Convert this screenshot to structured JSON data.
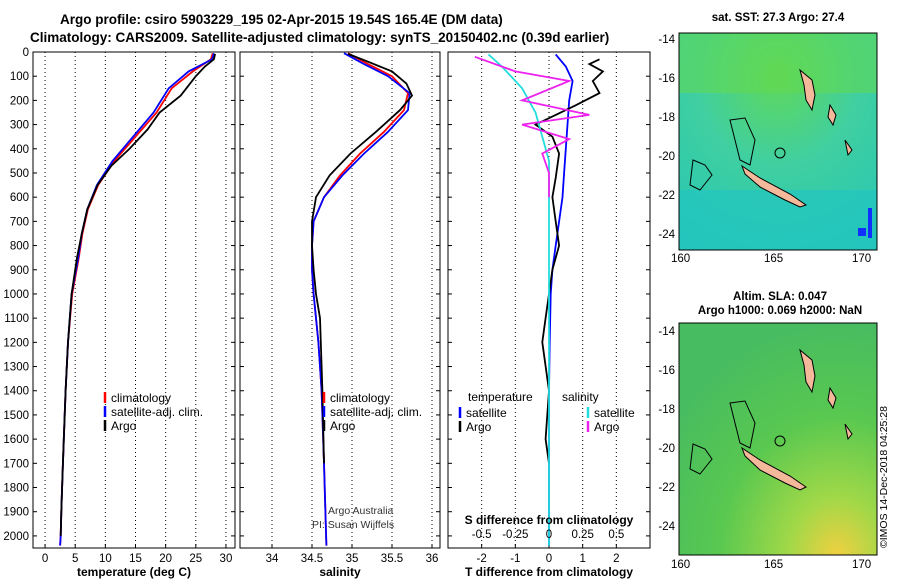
{
  "title": {
    "line1": "Argo profile: csiro 5903229_195 02-Apr-2015 19.54S 165.4E (DM data)",
    "line2": "Climatology: CARS2009. Satellite-adjusted climatology: synTS_20150402.nc (0.39d earlier)"
  },
  "colors": {
    "climatology": "#ff0000",
    "satellite": "#0000ff",
    "argo": "#000000",
    "sat_salinity": "#22dddd",
    "argo_salinity": "#ee22ee"
  },
  "depth_axis": {
    "min": 0,
    "max": 2050,
    "ticks": [
      0,
      100,
      200,
      300,
      400,
      500,
      600,
      700,
      800,
      900,
      1000,
      1100,
      1200,
      1300,
      1400,
      1500,
      1600,
      1700,
      1800,
      1900,
      2000
    ]
  },
  "chart_data": [
    {
      "type": "line",
      "id": "temperature",
      "xlabel": "temperature (deg C)",
      "ylabel": "depth",
      "xlim": [
        -2,
        31.5
      ],
      "xticks": [
        0,
        5,
        10,
        15,
        20,
        25,
        30
      ],
      "ylim": [
        2050,
        0
      ],
      "legend": [
        "climatology",
        "satellite-adj. clim.",
        "Argo"
      ],
      "series": [
        {
          "name": "climatology",
          "x": [
            27.8,
            27.5,
            24.5,
            21,
            18.5,
            15,
            11.5,
            8.8,
            7.1,
            6.2,
            5.6,
            4.5,
            3.8,
            3.4,
            3.1,
            2.9,
            2.7,
            2.6,
            2.5
          ],
          "y": [
            5,
            30,
            80,
            150,
            250,
            350,
            450,
            550,
            650,
            750,
            850,
            1000,
            1200,
            1400,
            1600,
            1750,
            1900,
            2000,
            2040
          ]
        },
        {
          "name": "satellite-adj. clim.",
          "x": [
            28.0,
            27.7,
            23.8,
            20.5,
            18,
            14.6,
            11.2,
            8.6,
            7.0,
            6.1,
            5.5,
            4.4,
            3.8,
            3.4,
            3.1,
            2.9,
            2.7,
            2.6,
            2.5
          ],
          "y": [
            5,
            30,
            80,
            150,
            250,
            350,
            450,
            550,
            650,
            750,
            850,
            1000,
            1200,
            1400,
            1600,
            1750,
            1900,
            2000,
            2040
          ]
        },
        {
          "name": "Argo",
          "x": [
            28.2,
            28.0,
            26.5,
            25,
            22.5,
            19,
            17,
            14,
            11,
            8.7,
            7.0,
            6.1,
            5.3,
            4.4,
            3.8,
            3.4,
            3.1,
            2.9,
            2.7,
            2.6
          ],
          "y": [
            8,
            30,
            60,
            100,
            180,
            250,
            320,
            400,
            470,
            550,
            650,
            750,
            850,
            1000,
            1200,
            1400,
            1600,
            1750,
            1900,
            2000
          ]
        }
      ]
    },
    {
      "type": "line",
      "id": "salinity",
      "xlabel": "salinity",
      "xlim": [
        33.6,
        36.1
      ],
      "xticks": [
        34,
        34.5,
        35,
        35.5,
        36
      ],
      "xtick_labels": [
        "34",
        "34.5",
        "35",
        "35.5",
        "36"
      ],
      "ylim": [
        2050,
        0
      ],
      "legend": [
        "climatology",
        "satellite-adj. clim.",
        "Argo"
      ],
      "series": [
        {
          "name": "climatology",
          "x": [
            34.95,
            35.2,
            35.5,
            35.7,
            35.65,
            35.4,
            35.1,
            34.85,
            34.65,
            34.52,
            34.5,
            34.5,
            34.52,
            34.55,
            34.58,
            34.62,
            34.65,
            34.68
          ],
          "y": [
            5,
            50,
            100,
            170,
            240,
            330,
            420,
            510,
            600,
            700,
            800,
            900,
            1000,
            1100,
            1200,
            1400,
            1700,
            2040
          ]
        },
        {
          "name": "satellite-adj. clim.",
          "x": [
            34.9,
            35.15,
            35.45,
            35.72,
            35.7,
            35.45,
            35.15,
            34.88,
            34.65,
            34.52,
            34.5,
            34.5,
            34.52,
            34.55,
            34.58,
            34.62,
            34.65,
            34.68
          ],
          "y": [
            5,
            50,
            100,
            170,
            240,
            330,
            420,
            510,
            600,
            700,
            800,
            900,
            1000,
            1100,
            1200,
            1400,
            1700,
            2040
          ]
        },
        {
          "name": "Argo",
          "x": [
            34.95,
            35.2,
            35.5,
            35.68,
            35.75,
            35.6,
            35.3,
            34.98,
            34.72,
            34.55,
            34.5,
            34.5,
            34.52,
            34.55,
            34.6,
            34.63,
            34.65
          ],
          "y": [
            8,
            40,
            80,
            130,
            180,
            240,
            330,
            420,
            510,
            600,
            700,
            800,
            900,
            1000,
            1100,
            1400,
            1700
          ]
        }
      ]
    },
    {
      "type": "line",
      "id": "difference",
      "xlabel": "T difference from climatology",
      "xlabel_top": "S difference from climatology",
      "xlim": [
        -3.0,
        3.0
      ],
      "xticks": [
        -2,
        -1,
        0,
        1,
        2
      ],
      "xticks_top": [
        -0.5,
        -0.25,
        0,
        0.25,
        0.5
      ],
      "xtick_labels_top": [
        "-0.5",
        "-0.25",
        "0",
        "0.25",
        "0.5"
      ],
      "ylim": [
        2050,
        0
      ],
      "legend_left_header": "temperature",
      "legend_right_header": "salinity",
      "legend_left": [
        "satellite",
        "Argo"
      ],
      "legend_right": [
        "satellite",
        "Argo"
      ],
      "series": [
        {
          "name": "temperature satellite",
          "x": [
            0.2,
            0.5,
            0.7,
            0.6,
            0.55,
            0.5,
            0.45,
            0.4,
            0.3,
            0.2,
            0.1,
            0.05,
            0.02,
            0.0,
            0.0,
            0.0
          ],
          "y": [
            10,
            60,
            120,
            200,
            300,
            400,
            500,
            600,
            700,
            800,
            900,
            1000,
            1200,
            1400,
            1700,
            2040
          ]
        },
        {
          "name": "temperature Argo",
          "x": [
            1.5,
            1.2,
            1.6,
            1.3,
            1.5,
            0.8,
            0.2,
            -0.4,
            0.1,
            0.3,
            0.2,
            0.1,
            0.2,
            0.3,
            0.1,
            0.0,
            -0.1,
            -0.2,
            0.0,
            -0.1,
            0.0
          ],
          "y": [
            30,
            50,
            80,
            120,
            170,
            220,
            260,
            300,
            350,
            420,
            520,
            600,
            700,
            800,
            900,
            1000,
            1100,
            1200,
            1400,
            1600,
            1700
          ]
        },
        {
          "name": "salinity satellite",
          "x": [
            -0.45,
            -0.35,
            -0.2,
            -0.1,
            -0.05,
            0.0,
            0.0,
            0.0,
            0.0,
            0.0,
            0.0
          ],
          "y": [
            10,
            60,
            150,
            250,
            350,
            450,
            550,
            700,
            1000,
            1500,
            2040
          ]
        },
        {
          "name": "salinity Argo",
          "x": [
            -0.55,
            -0.25,
            0.15,
            -0.2,
            0.3,
            -0.2,
            0.15,
            -0.05,
            0.0,
            0.0
          ],
          "y": [
            20,
            80,
            120,
            200,
            260,
            300,
            360,
            420,
            500,
            600
          ]
        }
      ]
    }
  ],
  "maps": {
    "sst": {
      "title": "sat. SST: 27.3 Argo: 27.4",
      "xticks": [
        "160",
        "165",
        "170"
      ],
      "yticks": [
        "-14",
        "-16",
        "-18",
        "-20",
        "-22",
        "-24"
      ]
    },
    "sla": {
      "title_line1": "Altim. SLA: 0.047",
      "title_line2": "Argo h1000: 0.069 h2000: NaN",
      "xticks": [
        "160",
        "165",
        "170"
      ],
      "yticks": [
        "-14",
        "-16",
        "-18",
        "-20",
        "-22",
        "-24"
      ]
    }
  },
  "credits": {
    "line1": "Argo Australia",
    "line2": "PI: Susan Wijffels",
    "imos": "©IMOS 14-Dec-2018 04:25:28"
  }
}
